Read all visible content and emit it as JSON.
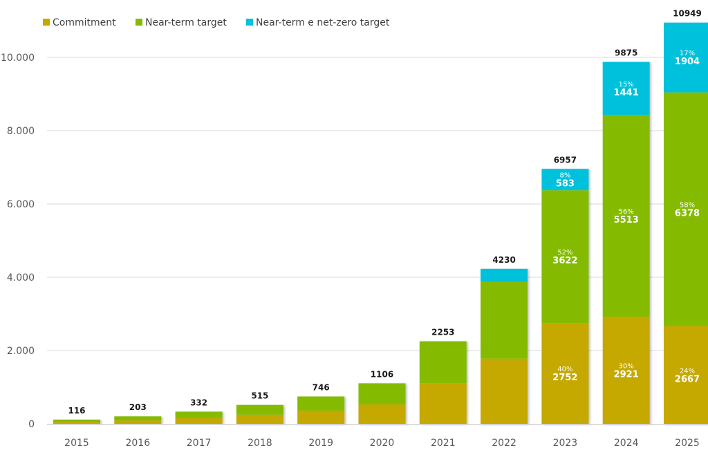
{
  "chart_data": {
    "type": "bar",
    "stacked": true,
    "title": "",
    "xlabel": "",
    "ylabel": "",
    "ylim": [
      0,
      11000
    ],
    "yticks": [
      0,
      2000,
      4000,
      6000,
      8000,
      10000
    ],
    "ytick_labels": [
      "0",
      "2.000",
      "4.000",
      "6.000",
      "8.000",
      "10.000"
    ],
    "grid": true,
    "legend_position": "top-left",
    "categories": [
      "2015",
      "2016",
      "2017",
      "2018",
      "2019",
      "2020",
      "2021",
      "2022",
      "2023",
      "2024",
      "2025"
    ],
    "series": [
      {
        "name": "Commitment",
        "color": "#c5a800",
        "values": [
          50,
          90,
          160,
          250,
          360,
          530,
          1110,
          1780,
          2752,
          2921,
          2667
        ],
        "labels": [
          null,
          null,
          null,
          null,
          null,
          null,
          null,
          null,
          {
            "pct": "40%",
            "value": "2752"
          },
          {
            "pct": "30%",
            "value": "2921"
          },
          {
            "pct": "24%",
            "value": "2667"
          }
        ]
      },
      {
        "name": "Near-term target",
        "color": "#84bb00",
        "values": [
          66,
          113,
          172,
          265,
          386,
          576,
          1143,
          2090,
          3622,
          5513,
          6378
        ],
        "labels": [
          null,
          null,
          null,
          null,
          null,
          null,
          null,
          null,
          {
            "pct": "52%",
            "value": "3622"
          },
          {
            "pct": "56%",
            "value": "5513"
          },
          {
            "pct": "58%",
            "value": "6378"
          }
        ]
      },
      {
        "name": "Near-term e net-zero target",
        "color": "#04c1dc",
        "values": [
          0,
          0,
          0,
          0,
          0,
          0,
          0,
          360,
          583,
          1441,
          1904
        ],
        "labels": [
          null,
          null,
          null,
          null,
          null,
          null,
          null,
          null,
          {
            "pct": "8%",
            "value": "583"
          },
          {
            "pct": "15%",
            "value": "1441"
          },
          {
            "pct": "17%",
            "value": "1904"
          }
        ]
      }
    ],
    "totals": [
      "116",
      "203",
      "332",
      "515",
      "746",
      "1106",
      "2253",
      "4230",
      "6957",
      "9875",
      "10949"
    ]
  }
}
